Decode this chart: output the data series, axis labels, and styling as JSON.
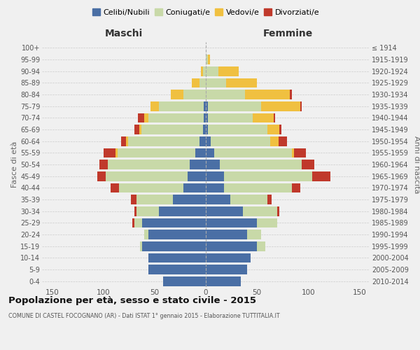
{
  "age_groups": [
    "0-4",
    "5-9",
    "10-14",
    "15-19",
    "20-24",
    "25-29",
    "30-34",
    "35-39",
    "40-44",
    "45-49",
    "50-54",
    "55-59",
    "60-64",
    "65-69",
    "70-74",
    "75-79",
    "80-84",
    "85-89",
    "90-94",
    "95-99",
    "100+"
  ],
  "birth_years": [
    "2010-2014",
    "2005-2009",
    "2000-2004",
    "1995-1999",
    "1990-1994",
    "1985-1989",
    "1980-1984",
    "1975-1979",
    "1970-1974",
    "1965-1969",
    "1960-1964",
    "1955-1959",
    "1950-1954",
    "1945-1949",
    "1940-1944",
    "1935-1939",
    "1930-1934",
    "1925-1929",
    "1920-1924",
    "1915-1919",
    "≤ 1914"
  ],
  "males_celibi": [
    42,
    56,
    56,
    62,
    56,
    62,
    46,
    32,
    22,
    18,
    16,
    10,
    6,
    3,
    2,
    2,
    0,
    0,
    0,
    0,
    0
  ],
  "males_coniugati": [
    0,
    0,
    0,
    2,
    4,
    8,
    22,
    36,
    63,
    80,
    80,
    76,
    70,
    60,
    54,
    44,
    22,
    6,
    3,
    0,
    0
  ],
  "males_vedovi": [
    0,
    0,
    0,
    0,
    0,
    0,
    0,
    0,
    0,
    0,
    0,
    2,
    2,
    2,
    4,
    8,
    12,
    8,
    2,
    0,
    0
  ],
  "males_divorziati": [
    0,
    0,
    0,
    0,
    0,
    2,
    2,
    5,
    8,
    8,
    8,
    12,
    5,
    5,
    6,
    0,
    0,
    0,
    0,
    0,
    0
  ],
  "females_nubili": [
    34,
    40,
    44,
    50,
    40,
    50,
    36,
    24,
    18,
    18,
    14,
    8,
    5,
    2,
    2,
    2,
    0,
    0,
    0,
    0,
    0
  ],
  "females_coniugate": [
    0,
    0,
    0,
    8,
    14,
    20,
    34,
    36,
    66,
    86,
    80,
    76,
    58,
    58,
    44,
    52,
    38,
    20,
    12,
    2,
    0
  ],
  "females_vedove": [
    0,
    0,
    0,
    0,
    0,
    0,
    0,
    0,
    0,
    0,
    0,
    2,
    8,
    12,
    20,
    38,
    44,
    30,
    20,
    2,
    0
  ],
  "females_divorziate": [
    0,
    0,
    0,
    0,
    0,
    0,
    2,
    4,
    8,
    18,
    12,
    12,
    8,
    2,
    2,
    2,
    2,
    0,
    0,
    0,
    0
  ],
  "color_celibi": "#4a6fa5",
  "color_coniugati": "#c8d9a8",
  "color_vedovi": "#f0c040",
  "color_divorziati": "#c0392b",
  "bg_color": "#f0f0f0",
  "title": "Popolazione per età, sesso e stato civile - 2015",
  "subtitle": "COMUNE DI CASTEL FOCOGNANO (AR) - Dati ISTAT 1° gennaio 2015 - Elaborazione TUTTITALIA.IT",
  "label_maschi": "Maschi",
  "label_femmine": "Femmine",
  "ylabel_left": "Fasce di età",
  "ylabel_right": "Anni di nascita",
  "xlim": 160
}
